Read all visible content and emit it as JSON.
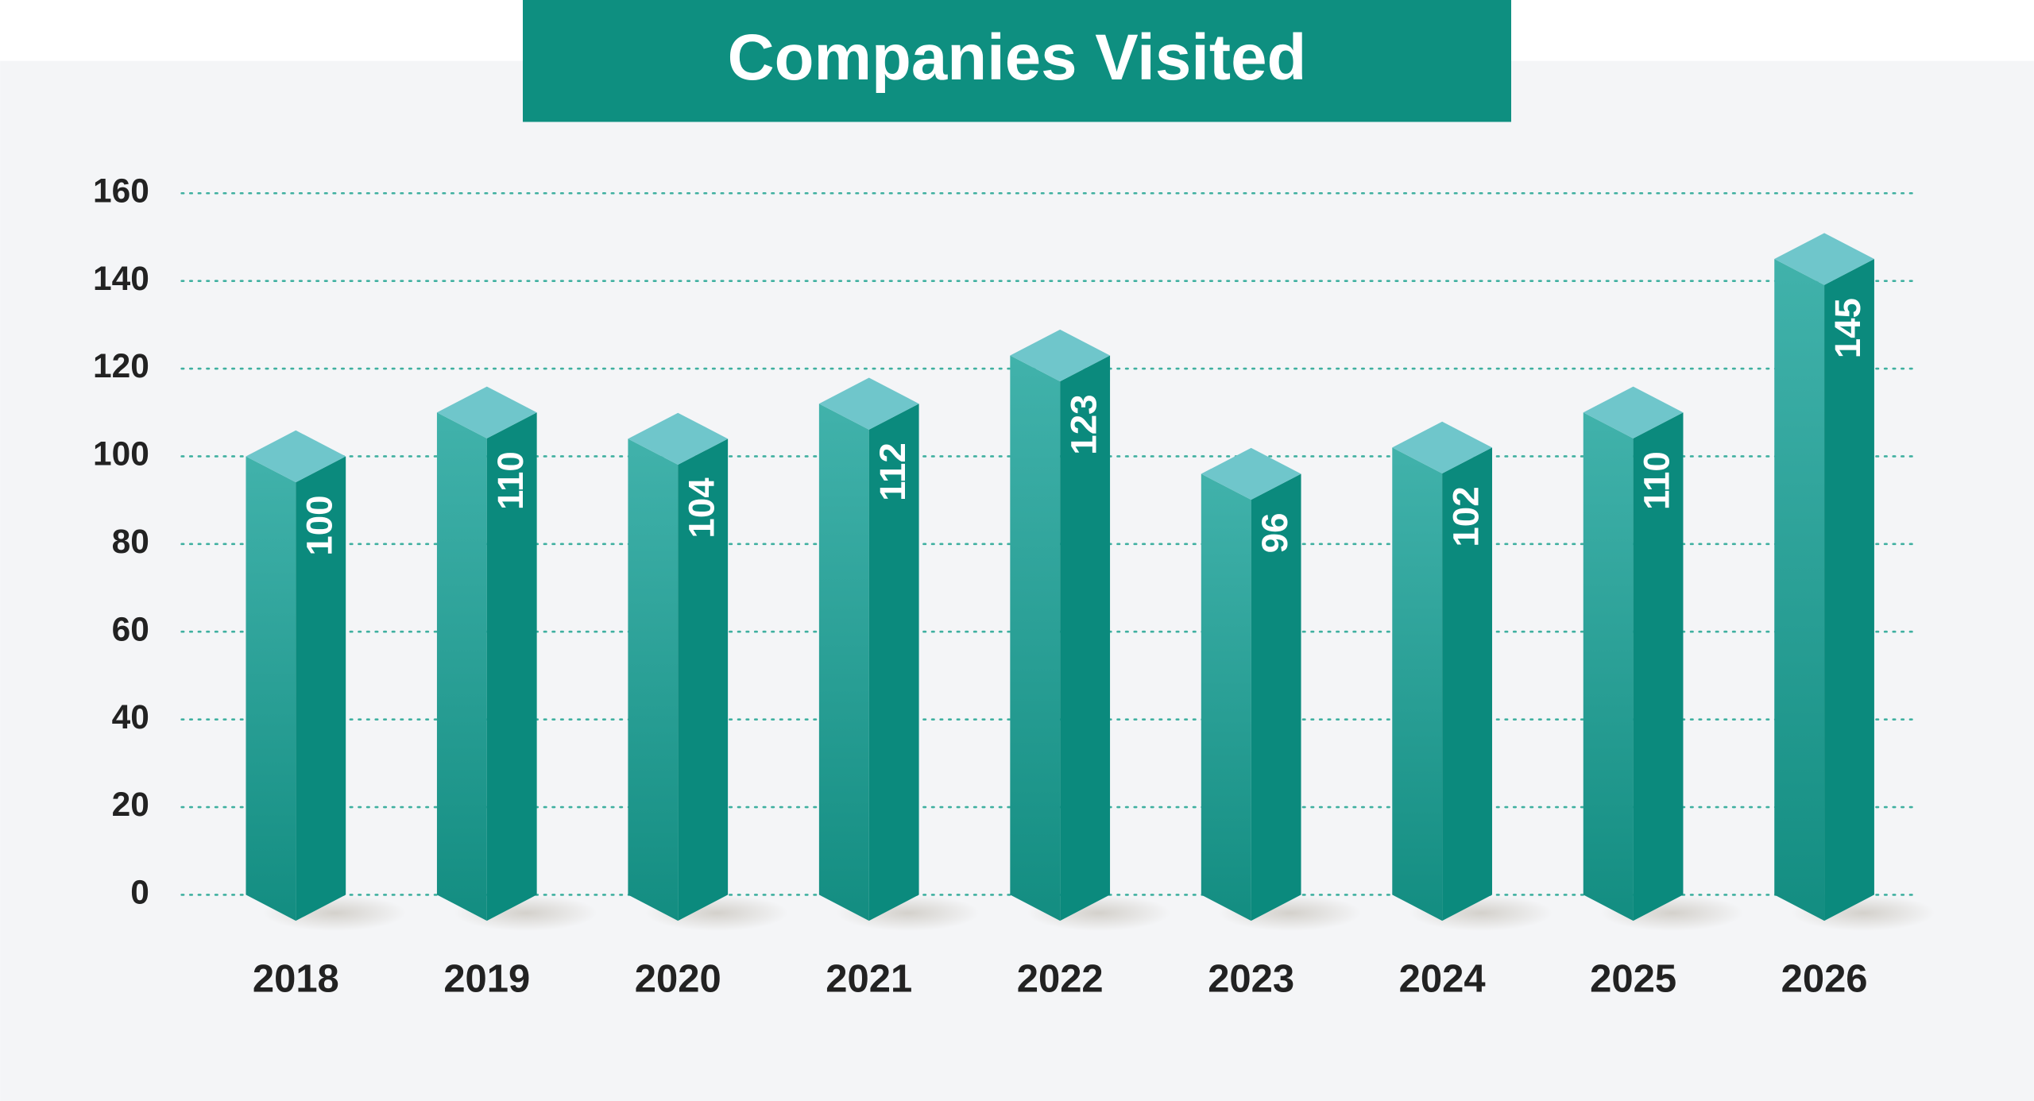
{
  "chart_data": {
    "type": "bar3d",
    "title": "Companies Visited",
    "categories": [
      "2018",
      "2019",
      "2020",
      "2021",
      "2022",
      "2023",
      "2024",
      "2025",
      "2026"
    ],
    "values": [
      100,
      110,
      104,
      112,
      123,
      96,
      102,
      110,
      145
    ],
    "color": "#0e8f80",
    "ylim": [
      0,
      160
    ],
    "yticks": [
      0,
      20,
      40,
      60,
      80,
      100,
      120,
      140,
      160
    ],
    "grid": true
  }
}
